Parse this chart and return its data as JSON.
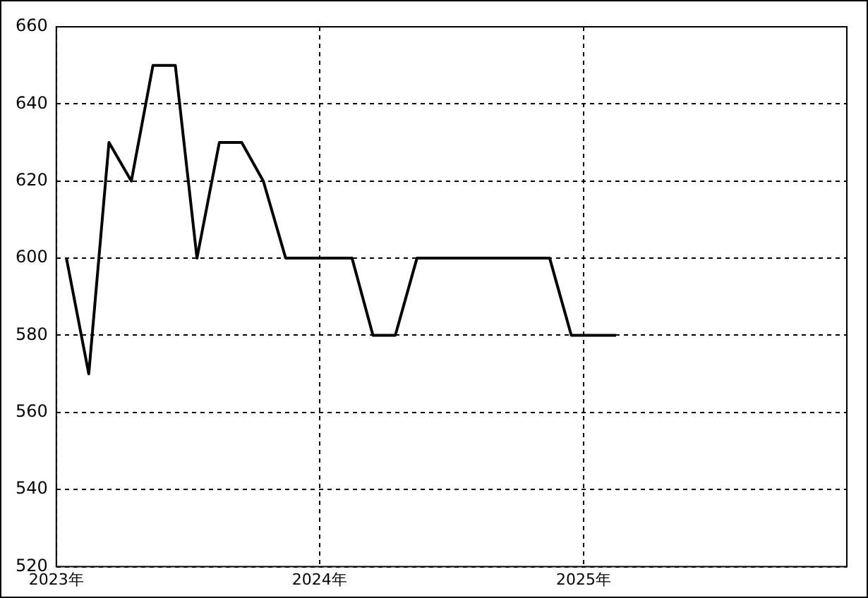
{
  "chart_data": {
    "type": "line",
    "x": [
      "2023-01-15",
      "2023-02-15",
      "2023-03-15",
      "2023-04-15",
      "2023-05-15",
      "2023-06-15",
      "2023-07-15",
      "2023-08-15",
      "2023-09-15",
      "2023-10-15",
      "2023-11-15",
      "2023-12-15",
      "2024-01-15",
      "2024-02-15",
      "2024-03-15",
      "2024-04-15",
      "2024-05-15",
      "2024-06-15",
      "2024-07-15",
      "2024-08-15",
      "2024-09-15",
      "2024-10-15",
      "2024-11-15",
      "2024-12-15",
      "2025-01-15",
      "2025-02-15"
    ],
    "series": [
      {
        "color": "#000000",
        "values": [
          600,
          570,
          630,
          620,
          650,
          650,
          600,
          630,
          630,
          620,
          600,
          600,
          600,
          600,
          580,
          580,
          600,
          600,
          600,
          600,
          600,
          600,
          600,
          580,
          580,
          580
        ]
      }
    ],
    "xlim": [
      "2023-01",
      "2026-01"
    ],
    "xticks": [
      {
        "value": "2023-01",
        "label": "2023年"
      },
      {
        "value": "2024-01",
        "label": "2024年"
      },
      {
        "value": "2025-01",
        "label": "2025年"
      }
    ],
    "ylim": [
      520,
      660
    ],
    "yticks": [
      520,
      540,
      560,
      580,
      600,
      620,
      640,
      660
    ],
    "grid": true,
    "legend": false,
    "marker": "none",
    "line_style": "solid"
  }
}
